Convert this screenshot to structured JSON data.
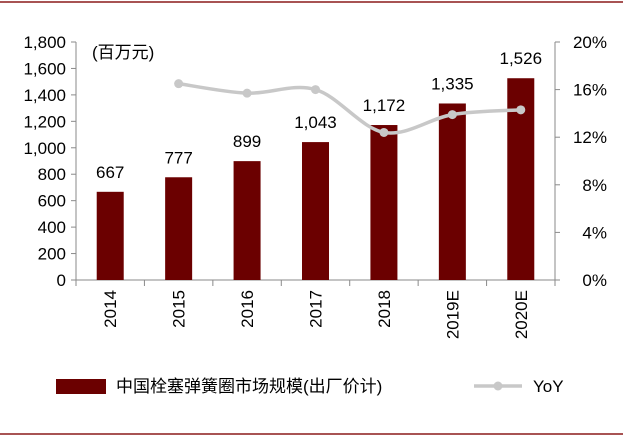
{
  "chart_data": {
    "type": "bar",
    "unit_label": "(百万元)",
    "categories": [
      "2014",
      "2015",
      "2016",
      "2017",
      "2018",
      "2019E",
      "2020E"
    ],
    "series": [
      {
        "name": "中国栓塞弹簧圈市场规模(出厂价计)",
        "type": "bar",
        "axis": "left",
        "values": [
          667,
          777,
          899,
          1043,
          1172,
          1335,
          1526
        ],
        "value_labels": [
          "667",
          "777",
          "899",
          "1,043",
          "1,172",
          "1,335",
          "1,526"
        ]
      },
      {
        "name": "YoY",
        "type": "line",
        "axis": "right",
        "values": [
          null,
          16.5,
          15.7,
          16.0,
          12.4,
          13.9,
          14.3
        ]
      }
    ],
    "y_left": {
      "min": 0,
      "max": 1800,
      "ticks": [
        0,
        200,
        400,
        600,
        800,
        1000,
        1200,
        1400,
        1600,
        1800
      ],
      "tick_labels": [
        "0",
        "200",
        "400",
        "600",
        "800",
        "1,000",
        "1,200",
        "1,400",
        "1,600",
        "1,800"
      ]
    },
    "y_right": {
      "min": 0,
      "max": 20,
      "ticks": [
        0,
        4,
        8,
        12,
        16,
        20
      ],
      "tick_labels": [
        "0%",
        "4%",
        "8%",
        "12%",
        "16%",
        "20%"
      ]
    },
    "grid": false,
    "legend_position": "bottom",
    "colors": {
      "bar": "#6b0000",
      "line": "#c8c8c8",
      "frame": "#8b1a1a",
      "axis": "#8a8a8a",
      "text": "#000000"
    }
  }
}
